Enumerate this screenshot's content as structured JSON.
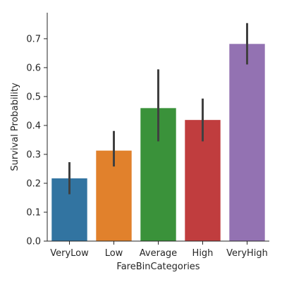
{
  "chart_data": {
    "type": "bar",
    "title": "",
    "xlabel": "FareBinCategories",
    "ylabel": "Survival Probability",
    "categories": [
      "VeryLow",
      "Low",
      "Average",
      "High",
      "VeryHigh"
    ],
    "values": [
      0.217,
      0.313,
      0.46,
      0.419,
      0.682
    ],
    "error_low": [
      0.162,
      0.258,
      0.345,
      0.345,
      0.611
    ],
    "error_high": [
      0.273,
      0.381,
      0.594,
      0.493,
      0.754
    ],
    "colors": [
      "#3274a1",
      "#e1812c",
      "#3a923a",
      "#c03d3e",
      "#9372b2"
    ],
    "ylim": [
      0,
      0.79
    ],
    "yticks": [
      0.0,
      0.1,
      0.2,
      0.3,
      0.4,
      0.5,
      0.6,
      0.7
    ],
    "ytick_labels": [
      "0.0",
      "0.1",
      "0.2",
      "0.3",
      "0.4",
      "0.5",
      "0.6",
      "0.7"
    ],
    "grid": false,
    "legend": "none"
  }
}
